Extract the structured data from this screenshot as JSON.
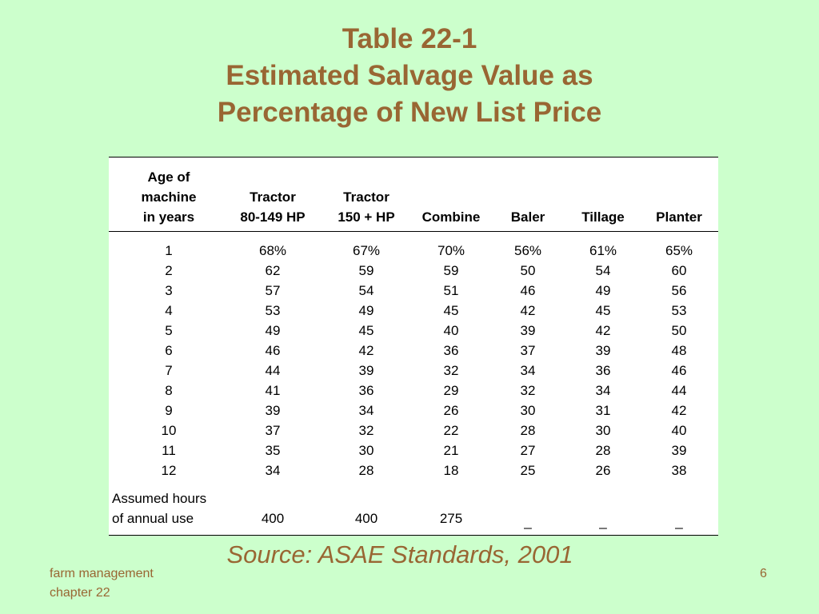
{
  "title": {
    "line1": "Table 22-1",
    "line2": "Estimated Salvage Value as",
    "line3": "Percentage of New List Price"
  },
  "table": {
    "headers": [
      [
        "Age of",
        "machine",
        "in years"
      ],
      [
        "Tractor",
        "80-149 HP"
      ],
      [
        "Tractor",
        "150 + HP"
      ],
      [
        "Combine"
      ],
      [
        "Baler"
      ],
      [
        "Tillage"
      ],
      [
        "Planter"
      ]
    ],
    "rows": [
      [
        "1",
        "68%",
        "67%",
        "70%",
        "56%",
        "61%",
        "65%"
      ],
      [
        "2",
        "62",
        "59",
        "59",
        "50",
        "54",
        "60"
      ],
      [
        "3",
        "57",
        "54",
        "51",
        "46",
        "49",
        "56"
      ],
      [
        "4",
        "53",
        "49",
        "45",
        "42",
        "45",
        "53"
      ],
      [
        "5",
        "49",
        "45",
        "40",
        "39",
        "42",
        "50"
      ],
      [
        "6",
        "46",
        "42",
        "36",
        "37",
        "39",
        "48"
      ],
      [
        "7",
        "44",
        "39",
        "32",
        "34",
        "36",
        "46"
      ],
      [
        "8",
        "41",
        "36",
        "29",
        "32",
        "34",
        "44"
      ],
      [
        "9",
        "39",
        "34",
        "26",
        "30",
        "31",
        "42"
      ],
      [
        "10",
        "37",
        "32",
        "22",
        "28",
        "30",
        "40"
      ],
      [
        "11",
        "35",
        "30",
        "21",
        "27",
        "28",
        "39"
      ],
      [
        "12",
        "34",
        "28",
        "18",
        "25",
        "26",
        "38"
      ]
    ],
    "footer": {
      "label_line1": "Assumed hours",
      "label_line2": "of annual use",
      "values": [
        "400",
        "400",
        "275",
        "_",
        "_",
        "_"
      ]
    }
  },
  "source": "Source:  ASAE Standards, 2001",
  "footer": {
    "left_line1": "farm management",
    "left_line2": "chapter 22",
    "page_number": "6"
  }
}
